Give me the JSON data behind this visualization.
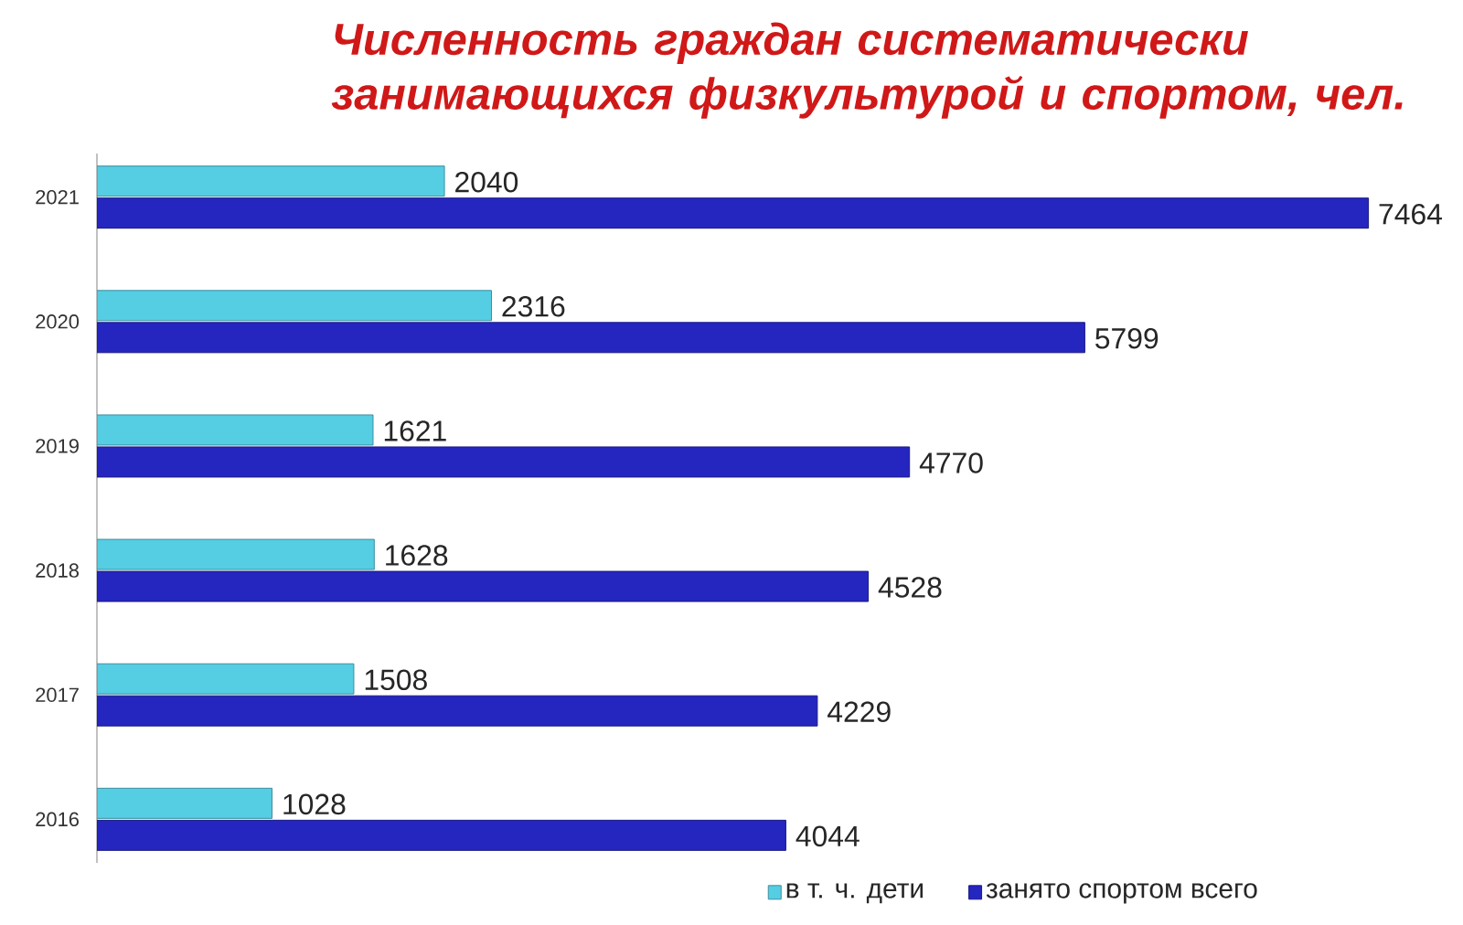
{
  "chart_data": {
    "type": "bar",
    "orientation": "horizontal",
    "title": "Численность граждан систематически занимающихся физкультурой и спортом, чел.",
    "categories": [
      "2021",
      "2020",
      "2019",
      "2018",
      "2017",
      "2016"
    ],
    "series": [
      {
        "name": "в т. ч. дети",
        "color": "#55cde3",
        "values": [
          2040,
          2316,
          1621,
          1628,
          1508,
          1028
        ]
      },
      {
        "name": "занято спортом всего",
        "color": "#2525c0",
        "values": [
          7464,
          5799,
          4770,
          4528,
          4229,
          4044
        ]
      }
    ],
    "data_labels": true,
    "legend": "bottom",
    "tick_labels": "y"
  }
}
